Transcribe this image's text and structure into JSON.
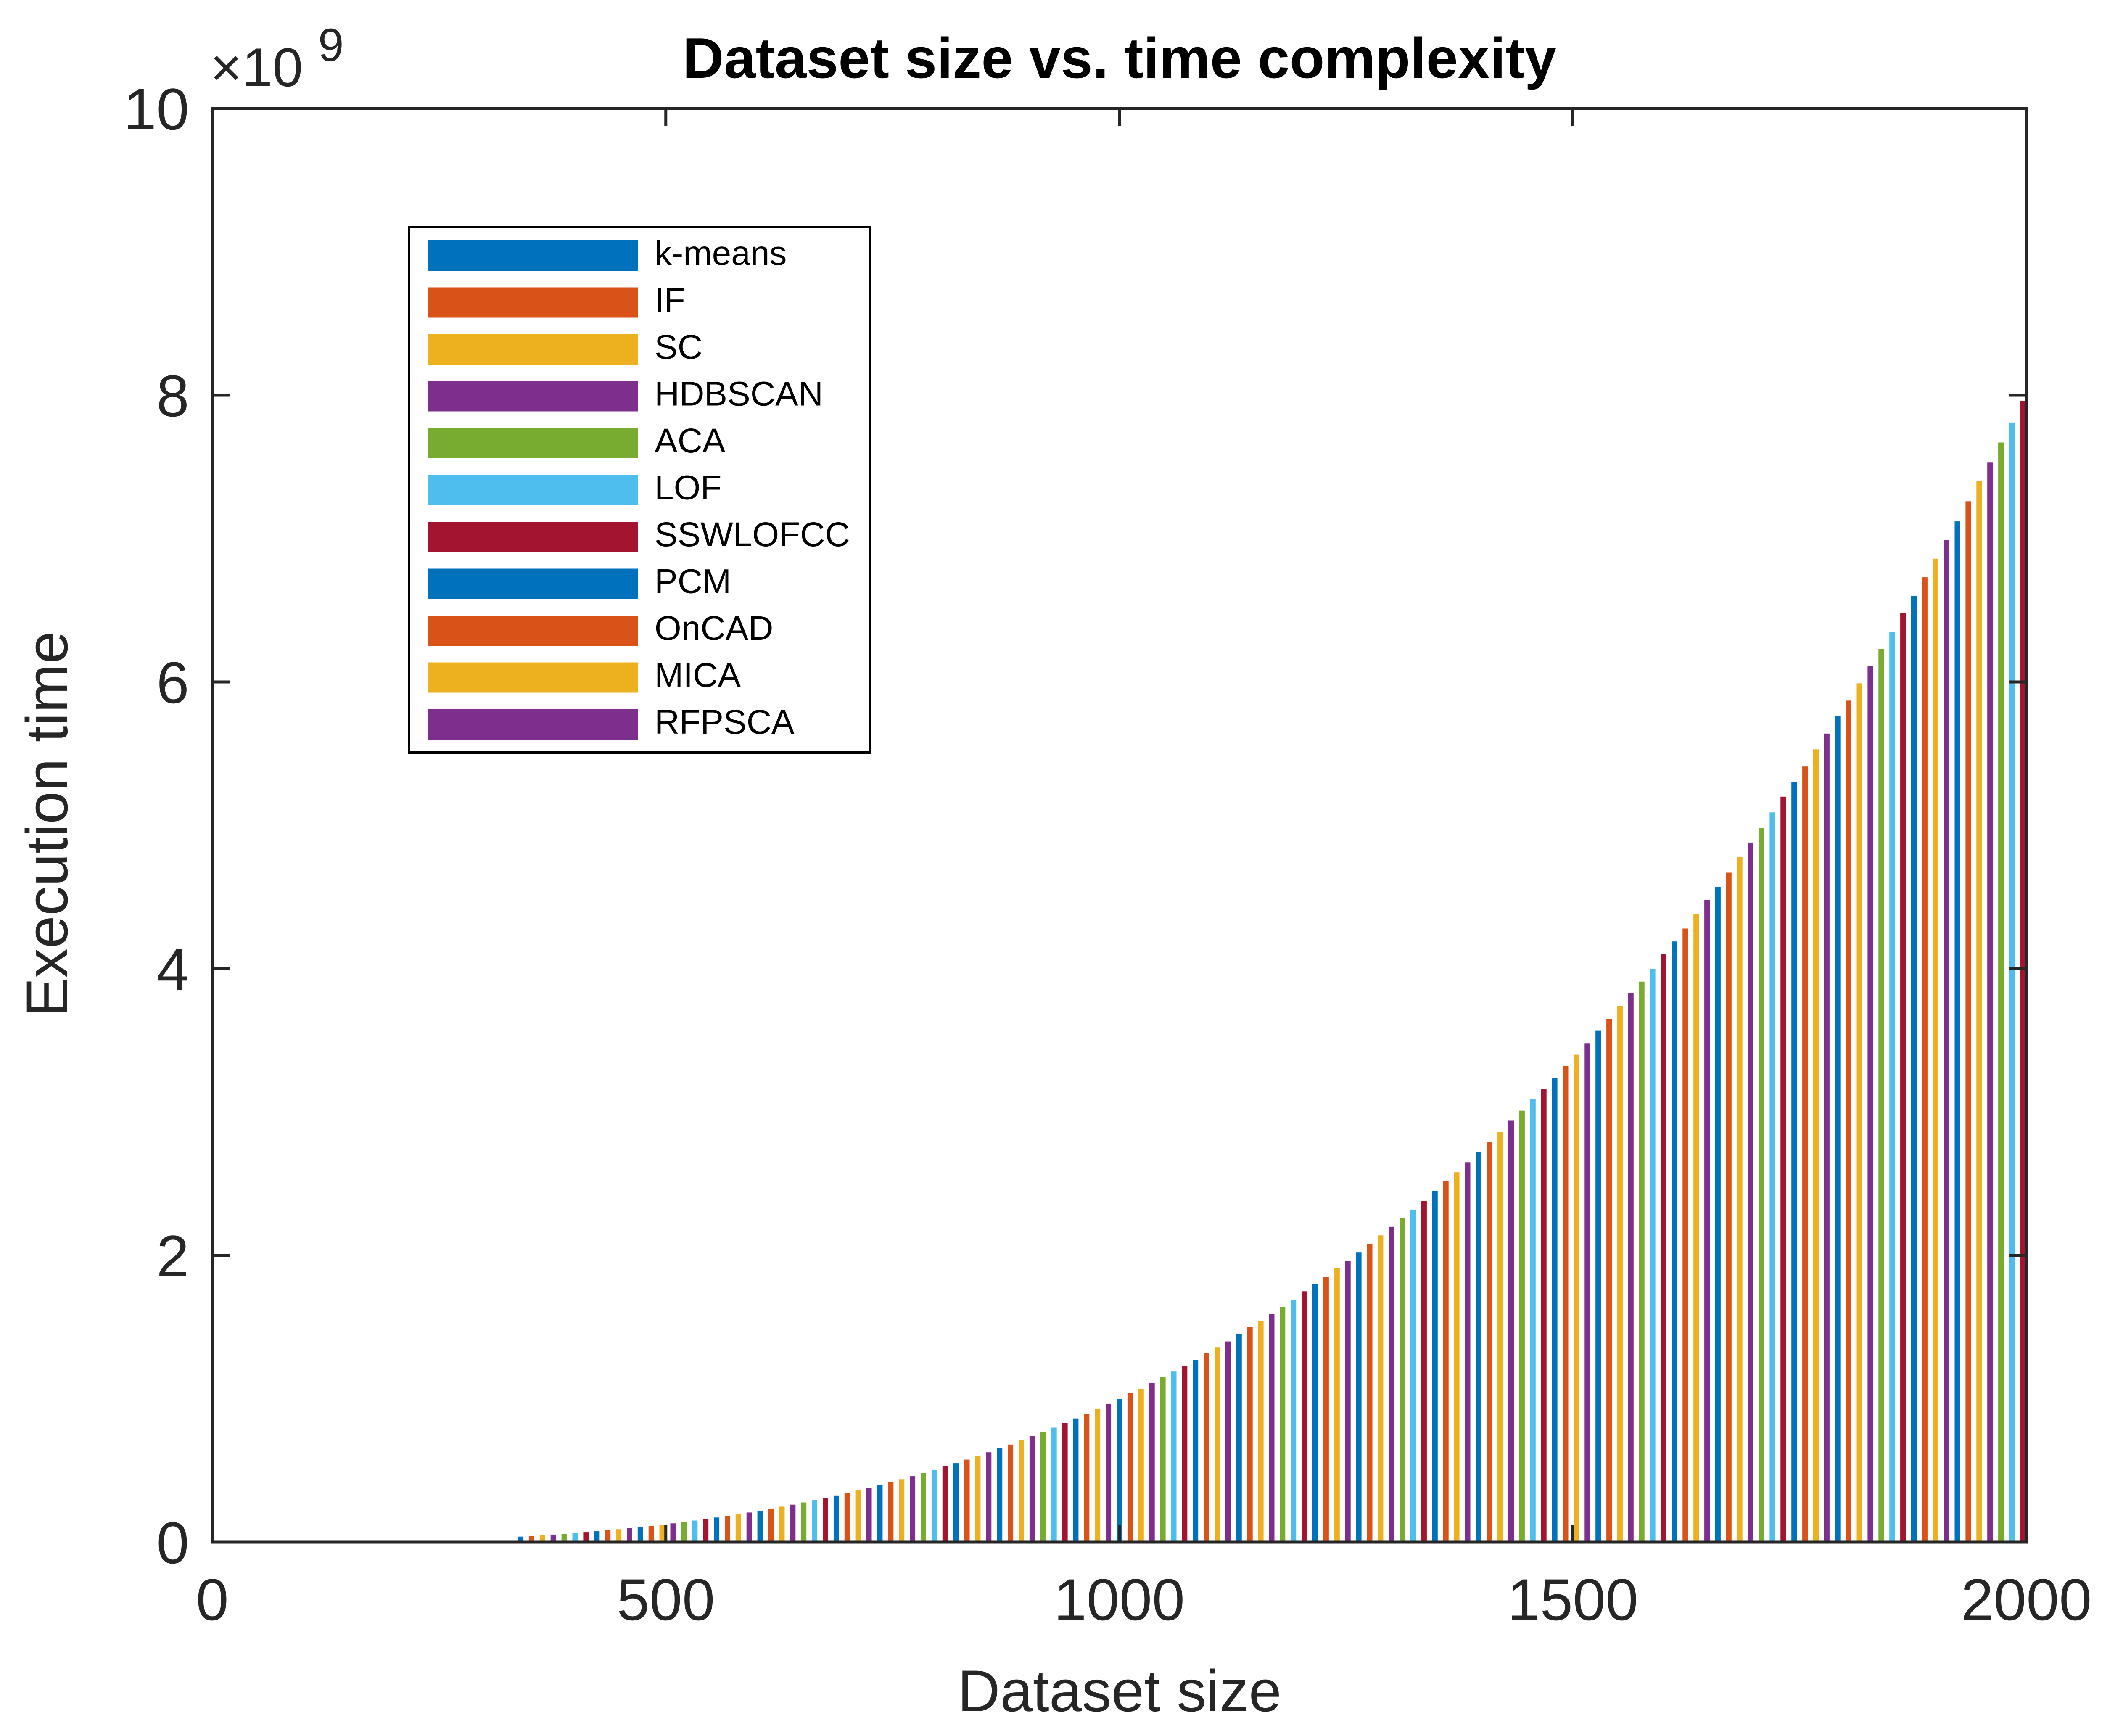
{
  "chart_data": {
    "type": "bar",
    "title": "Dataset size vs. time complexity",
    "xlabel": "Dataset size",
    "ylabel": "Execution time",
    "y_exponent_label": "×10",
    "y_exponent_power": "9",
    "xlim": [
      0,
      2000
    ],
    "ylim": [
      0,
      10
    ],
    "y_scale_factor": 1000000000,
    "xticks": [
      0,
      500,
      1000,
      1500,
      2000
    ],
    "yticks": [
      0,
      2,
      4,
      6,
      8,
      10
    ],
    "xtick_labels": [
      "0",
      "500",
      "1000",
      "1500",
      "2000"
    ],
    "ytick_labels": [
      "0",
      "2",
      "4",
      "6",
      "8",
      "10"
    ],
    "grid": false,
    "legend_position": "top-left",
    "series": [
      {
        "name": "k-means",
        "color": "#0072BD"
      },
      {
        "name": "IF",
        "color": "#D95319"
      },
      {
        "name": "SC",
        "color": "#EDB120"
      },
      {
        "name": "HDBSCAN",
        "color": "#7E2F8E"
      },
      {
        "name": "ACA",
        "color": "#77AC30"
      },
      {
        "name": "LOF",
        "color": "#4DBEEE"
      },
      {
        "name": "SSWLOFCC",
        "color": "#A2142F"
      },
      {
        "name": "PCM",
        "color": "#0072BD"
      },
      {
        "name": "OnCAD",
        "color": "#D95319"
      },
      {
        "name": "MICA",
        "color": "#EDB120"
      },
      {
        "name": "RFPSCA",
        "color": "#7E2F8E"
      }
    ],
    "x": [
      340,
      352,
      364,
      376,
      388,
      400,
      412,
      424,
      436,
      448,
      460,
      472,
      484,
      496,
      508,
      520,
      532,
      544,
      556,
      568,
      580,
      592,
      604,
      616,
      628,
      640,
      652,
      664,
      676,
      688,
      700,
      712,
      724,
      736,
      748,
      760,
      772,
      784,
      796,
      808,
      820,
      832,
      844,
      856,
      868,
      880,
      892,
      904,
      916,
      928,
      940,
      952,
      964,
      976,
      988,
      1000,
      1012,
      1024,
      1036,
      1048,
      1060,
      1072,
      1084,
      1096,
      1108,
      1120,
      1132,
      1144,
      1156,
      1168,
      1180,
      1192,
      1204,
      1216,
      1228,
      1240,
      1252,
      1264,
      1276,
      1288,
      1300,
      1312,
      1324,
      1336,
      1348,
      1360,
      1372,
      1384,
      1396,
      1408,
      1420,
      1432,
      1444,
      1456,
      1468,
      1480,
      1492,
      1504,
      1516,
      1528,
      1540,
      1552,
      1564,
      1576,
      1588,
      1600,
      1612,
      1624,
      1636,
      1648,
      1660,
      1672,
      1684,
      1696,
      1708,
      1720,
      1732,
      1744,
      1756,
      1768,
      1780,
      1792,
      1804,
      1816,
      1828,
      1840,
      1852,
      1864,
      1876,
      1888,
      1900,
      1912,
      1924,
      1936,
      1948,
      1960,
      1972,
      1984,
      1996
    ],
    "values": [
      0.039,
      0.044,
      0.048,
      0.053,
      0.058,
      0.064,
      0.07,
      0.076,
      0.083,
      0.09,
      0.097,
      0.105,
      0.113,
      0.122,
      0.131,
      0.141,
      0.151,
      0.161,
      0.172,
      0.183,
      0.195,
      0.207,
      0.22,
      0.234,
      0.248,
      0.262,
      0.277,
      0.293,
      0.309,
      0.326,
      0.343,
      0.361,
      0.38,
      0.399,
      0.419,
      0.439,
      0.46,
      0.482,
      0.504,
      0.528,
      0.551,
      0.576,
      0.601,
      0.627,
      0.654,
      0.681,
      0.71,
      0.739,
      0.769,
      0.799,
      0.831,
      0.863,
      0.896,
      0.93,
      0.965,
      1.0,
      1.04,
      1.07,
      1.11,
      1.15,
      1.19,
      1.23,
      1.27,
      1.32,
      1.36,
      1.4,
      1.45,
      1.5,
      1.54,
      1.59,
      1.64,
      1.69,
      1.75,
      1.8,
      1.85,
      1.91,
      1.96,
      2.02,
      2.08,
      2.14,
      2.2,
      2.26,
      2.32,
      2.38,
      2.45,
      2.52,
      2.58,
      2.65,
      2.72,
      2.79,
      2.86,
      2.94,
      3.01,
      3.09,
      3.16,
      3.24,
      3.32,
      3.4,
      3.48,
      3.57,
      3.65,
      3.74,
      3.83,
      3.91,
      4.0,
      4.1,
      4.19,
      4.28,
      4.38,
      4.48,
      4.57,
      4.67,
      4.78,
      4.88,
      4.98,
      5.09,
      5.2,
      5.3,
      5.41,
      5.53,
      5.64,
      5.76,
      5.87,
      5.99,
      6.11,
      6.23,
      6.35,
      6.48,
      6.6,
      6.73,
      6.86,
      6.99,
      7.12,
      7.26,
      7.4,
      7.53,
      7.67,
      7.81,
      7.96
    ]
  }
}
